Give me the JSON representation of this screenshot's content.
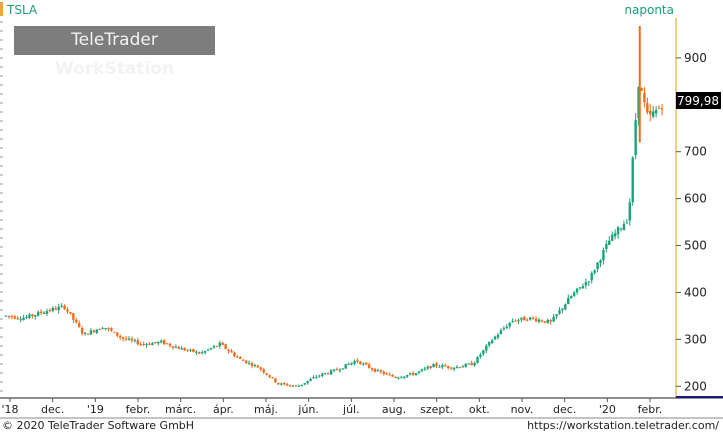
{
  "symbol": "TSLA",
  "period": "naponta",
  "brand": {
    "part1": "TeleTrader",
    "part2": "WorkStation"
  },
  "last_price_label": "799,98",
  "footer": {
    "copyright": "© 2020 TeleTrader Software GmbH",
    "url": "https://workstation.teletrader.com/"
  },
  "colors": {
    "up": "#1aa37a",
    "down": "#f06a18",
    "symbol": "#1a9e7a",
    "accent_bar": "#f2a33a",
    "yaxis_line": "#e8c15a",
    "price_label_bg": "#000000"
  },
  "chart_data": {
    "type": "candlestick",
    "title": "TSLA",
    "y_ticks": [
      200,
      300,
      400,
      500,
      600,
      700,
      800,
      900
    ],
    "ylim": [
      175,
      985
    ],
    "x_ticks": [
      "'18",
      "dec.",
      "'19",
      "febr.",
      "márc.",
      "ápr.",
      "máj.",
      "jún.",
      "júl.",
      "aug.",
      "szept.",
      "okt.",
      "nov.",
      "dec.",
      "'20",
      "febr."
    ],
    "series": [
      {
        "weekly_close_estimate": [
          [
            "2018-11-05",
            350
          ],
          [
            "2018-11-19",
            346
          ],
          [
            "2018-12-03",
            360
          ],
          [
            "2018-12-17",
            370
          ],
          [
            "2018-12-31",
            310
          ],
          [
            "2019-01-14",
            328
          ],
          [
            "2019-01-28",
            302
          ],
          [
            "2019-02-11",
            290
          ],
          [
            "2019-02-25",
            294
          ],
          [
            "2019-03-11",
            280
          ],
          [
            "2019-03-25",
            270
          ],
          [
            "2019-04-08",
            290
          ],
          [
            "2019-04-22",
            258
          ],
          [
            "2019-05-06",
            240
          ],
          [
            "2019-05-20",
            205
          ],
          [
            "2019-06-03",
            200
          ],
          [
            "2019-06-17",
            222
          ],
          [
            "2019-07-01",
            235
          ],
          [
            "2019-07-15",
            255
          ],
          [
            "2019-07-29",
            233
          ],
          [
            "2019-08-12",
            219
          ],
          [
            "2019-08-26",
            227
          ],
          [
            "2019-09-09",
            245
          ],
          [
            "2019-09-23",
            240
          ],
          [
            "2019-10-07",
            248
          ],
          [
            "2019-10-21",
            300
          ],
          [
            "2019-11-04",
            340
          ],
          [
            "2019-11-18",
            345
          ],
          [
            "2019-12-02",
            336
          ],
          [
            "2019-12-16",
            390
          ],
          [
            "2019-12-30",
            430
          ],
          [
            "2020-01-13",
            510
          ],
          [
            "2020-01-27",
            560
          ],
          [
            "2020-02-03",
            850
          ],
          [
            "2020-02-10",
            770
          ],
          [
            "2020-02-20",
            800
          ]
        ]
      }
    ],
    "last_value": 799.98
  }
}
